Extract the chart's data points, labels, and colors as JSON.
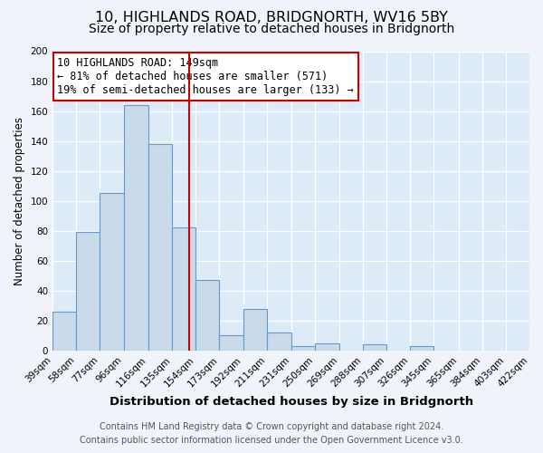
{
  "title": "10, HIGHLANDS ROAD, BRIDGNORTH, WV16 5BY",
  "subtitle": "Size of property relative to detached houses in Bridgnorth",
  "xlabel": "Distribution of detached houses by size in Bridgnorth",
  "ylabel": "Number of detached properties",
  "bar_values": [
    26,
    79,
    105,
    164,
    138,
    82,
    47,
    10,
    28,
    12,
    3,
    5,
    0,
    4,
    0,
    3,
    0,
    0,
    0,
    0
  ],
  "bin_edges": [
    39,
    58,
    77,
    96,
    116,
    135,
    154,
    173,
    192,
    211,
    231,
    250,
    269,
    288,
    307,
    326,
    345,
    365,
    384,
    403,
    422
  ],
  "tick_labels": [
    "39sqm",
    "58sqm",
    "77sqm",
    "96sqm",
    "116sqm",
    "135sqm",
    "154sqm",
    "173sqm",
    "192sqm",
    "211sqm",
    "231sqm",
    "250sqm",
    "269sqm",
    "288sqm",
    "307sqm",
    "326sqm",
    "345sqm",
    "365sqm",
    "384sqm",
    "403sqm",
    "422sqm"
  ],
  "bar_color": "#c9daea",
  "bar_edge_color": "#6699cc",
  "redline_x": 149,
  "ylim": [
    0,
    200
  ],
  "yticks": [
    0,
    20,
    40,
    60,
    80,
    100,
    120,
    140,
    160,
    180,
    200
  ],
  "annotation_title": "10 HIGHLANDS ROAD: 149sqm",
  "annotation_line1": "← 81% of detached houses are smaller (571)",
  "annotation_line2": "19% of semi-detached houses are larger (133) →",
  "annotation_box_bg": "#ffffff",
  "annotation_box_edge": "#cc0000",
  "footer_line1": "Contains HM Land Registry data © Crown copyright and database right 2024.",
  "footer_line2": "Contains public sector information licensed under the Open Government Licence v3.0.",
  "fig_bg_color": "#f0f4fa",
  "plot_bg_color": "#ddeaf7",
  "grid_color": "#ffffff",
  "title_fontsize": 11.5,
  "subtitle_fontsize": 10,
  "xlabel_fontsize": 9.5,
  "ylabel_fontsize": 8.5,
  "tick_fontsize": 7.5,
  "footer_fontsize": 7,
  "annot_fontsize": 8.5
}
